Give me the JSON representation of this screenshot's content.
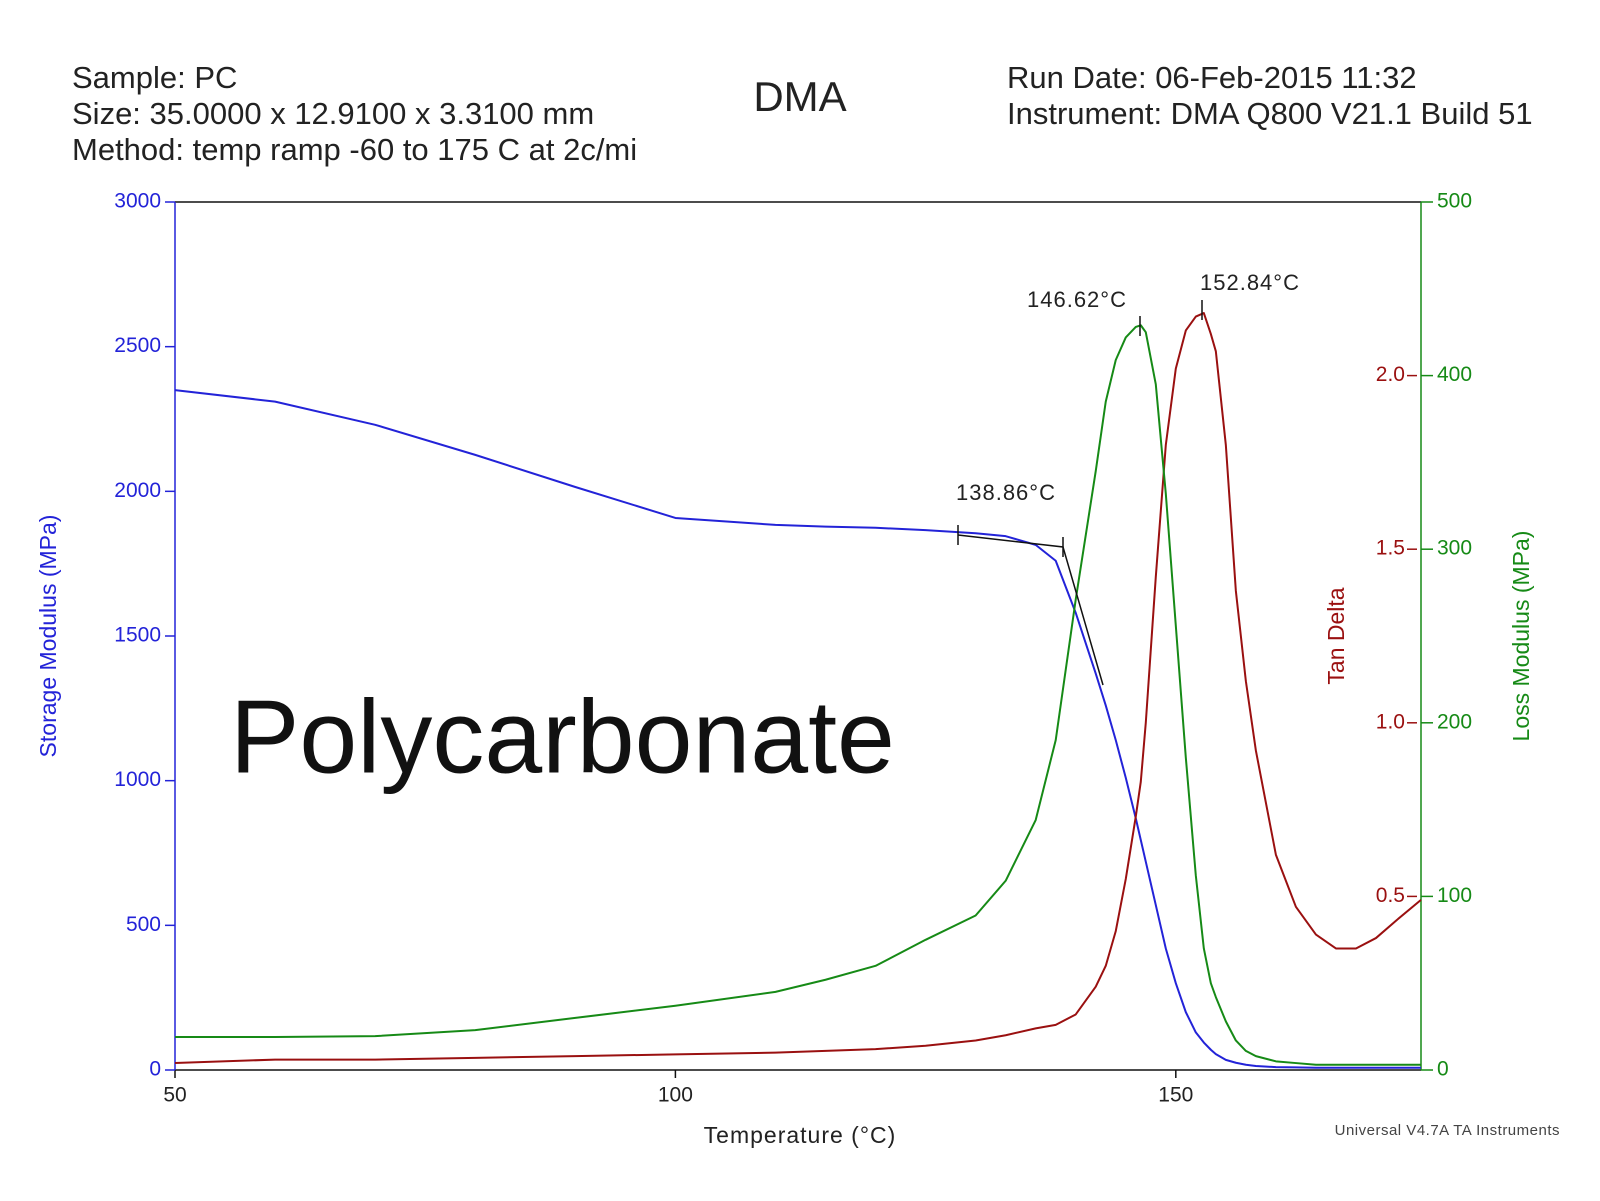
{
  "chart_data": {
    "type": "line",
    "title": "DMA",
    "header_left": [
      "Sample: PC",
      "Size:  35.0000 x 12.9100 x 3.3100 mm",
      "Method: temp ramp -60 to 175 C at 2c/mi"
    ],
    "header_right": [
      "Run Date: 06-Feb-2015 11:32",
      "Instrument: DMA Q800 V21.1 Build 51"
    ],
    "footer": "Universal V4.7A TA Instruments",
    "overlay_label": "Polycarbonate",
    "x_label": "Temperature (°C)",
    "y_label": "Storage Modulus (MPa)",
    "y2_label": "Tan Delta",
    "y3_label": "Loss Modulus (MPa)",
    "annotations": [
      "146.62°C",
      "152.84°C",
      "138.86°C"
    ],
    "xlim": [
      50,
      174.5
    ],
    "xticks": [
      50,
      100,
      150
    ],
    "ylim": [
      0,
      3000
    ],
    "yticks": [
      0,
      500,
      1000,
      1500,
      2000,
      2500,
      3000
    ],
    "y2lim": [
      0,
      2.5
    ],
    "y2ticks": [
      0.5,
      {
        "value": 1.0,
        "label": "1.0"
      },
      1.5,
      {
        "value": 2.0,
        "label": "2.0"
      }
    ],
    "y3lim": [
      0,
      500
    ],
    "y3ticks": [
      0,
      100,
      200,
      300,
      400,
      500
    ],
    "x": [
      50,
      60,
      70,
      80,
      90,
      100,
      110,
      115,
      120,
      125,
      130,
      133,
      136,
      138,
      140,
      142,
      143,
      144,
      145,
      146,
      146.5,
      147,
      148,
      149,
      150,
      151,
      152,
      152.8,
      153.5,
      154,
      155,
      156,
      157,
      158,
      160,
      162,
      164,
      166,
      168,
      170,
      172,
      174.5
    ],
    "series": [
      {
        "name": "Storage Modulus",
        "color": "#2323d8",
        "axis": "y",
        "values": [
          2350,
          2310,
          2230,
          2126,
          2015,
          1908,
          1884,
          1878,
          1874,
          1866,
          1855,
          1845,
          1815,
          1760,
          1580,
          1370,
          1260,
          1140,
          1010,
          870,
          795,
          720,
          570,
          420,
          300,
          200,
          130,
          95,
          70,
          55,
          35,
          25,
          18,
          14,
          10,
          9,
          8,
          8,
          8,
          8,
          8,
          8
        ]
      },
      {
        "name": "Tan Delta",
        "color": "#9a1010",
        "axis": "y2",
        "values": [
          0.02,
          0.03,
          0.03,
          0.035,
          0.04,
          0.045,
          0.05,
          0.055,
          0.06,
          0.07,
          0.085,
          0.1,
          0.12,
          0.13,
          0.16,
          0.24,
          0.3,
          0.4,
          0.55,
          0.73,
          0.83,
          1.0,
          1.42,
          1.8,
          2.02,
          2.13,
          2.17,
          2.18,
          2.12,
          2.07,
          1.8,
          1.38,
          1.12,
          0.92,
          0.62,
          0.47,
          0.39,
          0.35,
          0.35,
          0.38,
          0.43,
          0.49
        ]
      },
      {
        "name": "Loss Modulus",
        "color": "#168a16",
        "axis": "y3",
        "values": [
          19,
          19,
          19.5,
          23,
          30,
          37,
          45,
          52,
          60,
          75,
          89,
          109,
          144,
          190,
          271,
          345,
          385,
          409,
          422,
          428,
          429,
          425,
          395,
          332,
          256,
          180,
          112,
          70,
          50,
          42,
          28,
          17,
          11,
          8,
          5,
          4,
          3,
          3,
          3,
          3,
          3,
          3
        ]
      }
    ]
  }
}
